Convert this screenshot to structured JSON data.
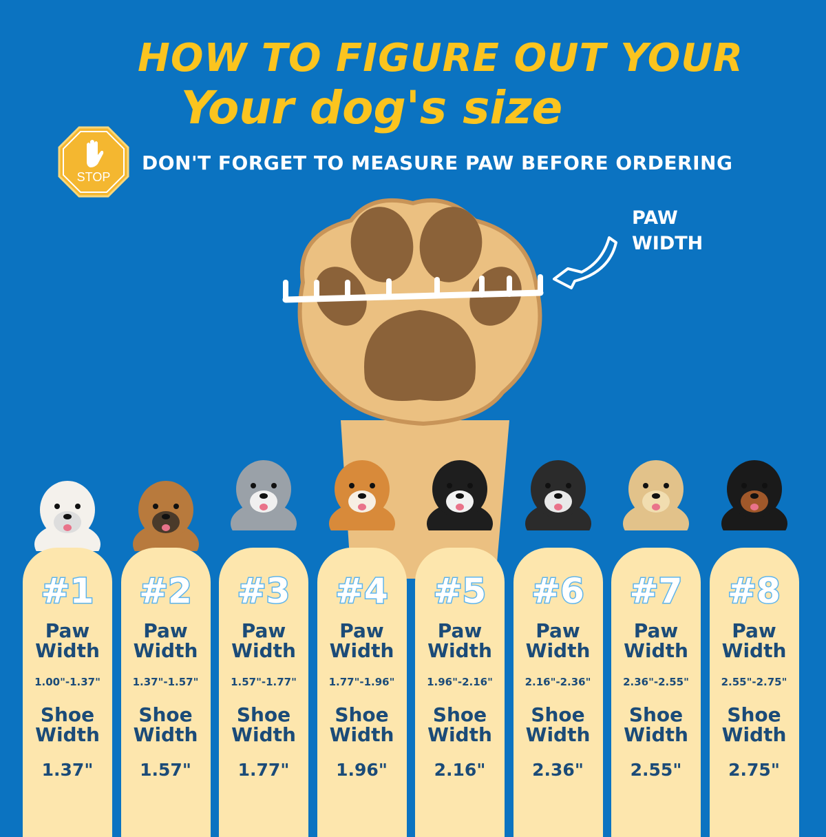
{
  "header": {
    "title_line1": "HOW TO FIGURE OUT YOUR",
    "title_line2": "Your dog's size"
  },
  "notice": {
    "stop_sign_text": "STOP",
    "text": "DON'T FORGET TO MEASURE PAW BEFORE ORDERING"
  },
  "diagram": {
    "paw_label_line1": "PAW",
    "paw_label_line2": "WIDTH"
  },
  "labels": {
    "paw_line1": "Paw",
    "paw_line2": "Width",
    "shoe_line1": "Shoe",
    "shoe_line2": "Width"
  },
  "colors": {
    "background": "#0b73c1",
    "title": "#fbc41f",
    "card": "#fde6ad",
    "card_text": "#1b4b78"
  },
  "sizes": [
    {
      "number": "#1",
      "paw_width": "1.00\"-1.37\"",
      "shoe_width": "1.37\""
    },
    {
      "number": "#2",
      "paw_width": "1.37\"-1.57\"",
      "shoe_width": "1.57\""
    },
    {
      "number": "#3",
      "paw_width": "1.57\"-1.77\"",
      "shoe_width": "1.77\""
    },
    {
      "number": "#4",
      "paw_width": "1.77\"-1.96\"",
      "shoe_width": "1.96\""
    },
    {
      "number": "#5",
      "paw_width": "1.96\"-2.16\"",
      "shoe_width": "2.16\""
    },
    {
      "number": "#6",
      "paw_width": "2.16\"-2.36\"",
      "shoe_width": "2.36\""
    },
    {
      "number": "#7",
      "paw_width": "2.36\"-2.55\"",
      "shoe_width": "2.55\""
    },
    {
      "number": "#8",
      "paw_width": "2.55\"-2.75\"",
      "shoe_width": "2.75\""
    }
  ]
}
